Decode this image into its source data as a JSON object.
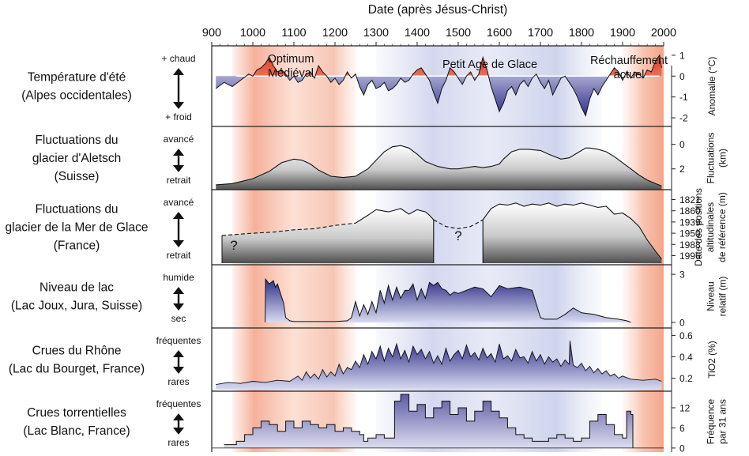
{
  "title": "Date (après Jésus-Christ)",
  "colors": {
    "warm": "#f4a98a",
    "cold": "#b7bde3",
    "blue_fill": "#3d3f8f",
    "red_fill": "#e0381e",
    "gray_dark": "#6b6b6b"
  },
  "chart_data": {
    "type": "area",
    "x_axis": {
      "label": "Date (après Jésus-Christ)",
      "range": [
        900,
        2000
      ],
      "ticks": [
        900,
        1000,
        1100,
        1200,
        1300,
        1400,
        1500,
        1600,
        1700,
        1800,
        1900,
        2000
      ]
    },
    "periods": [
      {
        "name": "Optimum Médiéval",
        "label_lines": [
          "Optimum",
          "Médiéval"
        ],
        "start": 950,
        "end": 1250,
        "kind": "warm"
      },
      {
        "name": "Petit Age de Glace",
        "label_lines": [
          "Petit Age de Glace"
        ],
        "start": 1300,
        "end": 1850,
        "kind": "cold"
      },
      {
        "name": "Réchauffement actuel",
        "label_lines": [
          "Réchauffement",
          "actuel"
        ],
        "start": 1900,
        "end": 2000,
        "kind": "warm"
      }
    ],
    "panels": [
      {
        "id": "temp",
        "title_lines": [
          "Température d'été",
          "(Alpes occidentales)"
        ],
        "top_label": "+ chaud",
        "bottom_label": "+ froid",
        "y_label_lines": [
          "Anomalie (°C)"
        ],
        "y_ticks": [
          {
            "v": 1,
            "label": "1"
          },
          {
            "v": 0,
            "label": "0"
          },
          {
            "v": -1,
            "label": "-1"
          },
          {
            "v": -2,
            "label": "-2"
          }
        ],
        "ylim": [
          -2.3,
          1.3
        ],
        "baseline": 0,
        "x": [
          910,
          930,
          950,
          970,
          990,
          1000,
          1010,
          1020,
          1030,
          1040,
          1050,
          1060,
          1070,
          1080,
          1090,
          1100,
          1110,
          1120,
          1130,
          1140,
          1150,
          1160,
          1170,
          1180,
          1190,
          1200,
          1210,
          1220,
          1230,
          1240,
          1250,
          1260,
          1270,
          1280,
          1290,
          1300,
          1310,
          1320,
          1330,
          1340,
          1350,
          1360,
          1370,
          1380,
          1390,
          1400,
          1410,
          1420,
          1430,
          1440,
          1450,
          1460,
          1470,
          1480,
          1490,
          1500,
          1510,
          1520,
          1530,
          1540,
          1550,
          1560,
          1570,
          1580,
          1590,
          1600,
          1610,
          1620,
          1630,
          1640,
          1650,
          1660,
          1670,
          1680,
          1690,
          1700,
          1710,
          1720,
          1730,
          1740,
          1750,
          1760,
          1770,
          1780,
          1790,
          1800,
          1810,
          1820,
          1830,
          1840,
          1850,
          1860,
          1870,
          1880,
          1890,
          1900,
          1910,
          1920,
          1930,
          1940,
          1950,
          1960,
          1970,
          1980,
          1990,
          1995
        ],
        "y": [
          -0.6,
          -0.3,
          -0.5,
          -0.2,
          0.1,
          0.0,
          0.3,
          0.4,
          0.6,
          0.9,
          0.5,
          0.2,
          0.3,
          0.1,
          -0.2,
          0.0,
          -0.3,
          -0.2,
          0.1,
          0.2,
          -0.1,
          0.5,
          0.2,
          0.0,
          -0.3,
          -0.1,
          -0.4,
          -0.2,
          0.2,
          -0.1,
          0.1,
          -0.5,
          -0.9,
          -0.4,
          -0.2,
          -0.6,
          -0.5,
          -0.3,
          -0.7,
          -0.6,
          -0.4,
          -0.1,
          -0.3,
          -0.2,
          0.1,
          0.3,
          0.4,
          0.1,
          -0.2,
          -0.8,
          -1.3,
          -0.6,
          -0.2,
          0.4,
          0.2,
          -0.1,
          -0.4,
          0.0,
          0.2,
          -0.2,
          0.1,
          0.9,
          0.3,
          -0.5,
          -1.1,
          -1.7,
          -1.3,
          -0.7,
          -0.5,
          -0.9,
          -0.4,
          -0.2,
          -0.5,
          -0.1,
          0.1,
          -0.3,
          -0.6,
          -0.2,
          -0.9,
          -0.5,
          -0.1,
          0.0,
          -0.3,
          -0.6,
          -1.0,
          -1.5,
          -1.9,
          -1.1,
          -0.6,
          -0.9,
          -0.5,
          -0.2,
          0.1,
          0.4,
          0.2,
          -0.2,
          0.2,
          -0.1,
          0.2,
          0.1,
          -0.1,
          0.3,
          0.2,
          0.7,
          1.0,
          0.4
        ]
      },
      {
        "id": "aletsch",
        "title_lines": [
          "Fluctuations du",
          "glacier d'Aletsch",
          "(Suisse)"
        ],
        "top_label": "avancé",
        "bottom_label": "retrait",
        "y_label_lines": [
          "Fluctuations",
          "(km)"
        ],
        "y_ticks": [
          {
            "v": 0,
            "label": "0"
          },
          {
            "v": 2,
            "label": "2"
          }
        ],
        "ylim": [
          3.5,
          -1.2
        ],
        "x": [
          910,
          950,
          1000,
          1040,
          1070,
          1100,
          1120,
          1140,
          1160,
          1190,
          1220,
          1250,
          1280,
          1300,
          1320,
          1340,
          1360,
          1380,
          1400,
          1420,
          1450,
          1480,
          1500,
          1520,
          1540,
          1560,
          1580,
          1600,
          1610,
          1630,
          1650,
          1670,
          1700,
          1720,
          1750,
          1770,
          1790,
          1810,
          1820,
          1840,
          1860,
          1880,
          1900,
          1920,
          1940,
          1960,
          1980,
          1995
        ],
        "y": [
          3.3,
          3.2,
          2.8,
          2.2,
          1.5,
          1.2,
          1.3,
          1.6,
          2.1,
          2.6,
          2.7,
          2.6,
          2.0,
          1.3,
          0.6,
          0.2,
          0.1,
          0.3,
          0.8,
          1.4,
          1.8,
          2.0,
          2.0,
          1.9,
          1.8,
          1.9,
          1.8,
          1.6,
          1.2,
          0.6,
          0.4,
          0.4,
          0.5,
          0.8,
          1.2,
          1.1,
          0.7,
          0.3,
          0.3,
          0.4,
          0.6,
          1.0,
          1.5,
          2.0,
          2.5,
          2.9,
          3.2,
          3.4
        ]
      },
      {
        "id": "merdeglace",
        "title_lines": [
          "Fluctuations du",
          "glacier de la Mer de Glace",
          "(France)"
        ],
        "top_label": "avancé",
        "bottom_label": "retrait",
        "y_label_lines": [
          "Date des positions",
          "altitudinales",
          "de référence (m)"
        ],
        "y_ticks": [
          {
            "v": 0,
            "label": "1821"
          },
          {
            "v": 1,
            "label": "1860"
          },
          {
            "v": 2,
            "label": "1939"
          },
          {
            "v": 3,
            "label": "1950"
          },
          {
            "v": 4,
            "label": "1988"
          },
          {
            "v": 5,
            "label": "1996"
          }
        ],
        "ylim": [
          5.6,
          -0.6
        ],
        "unknown_label": "?",
        "dashed_1": {
          "x": [
            925,
            1000,
            1050,
            1100,
            1150,
            1200,
            1250
          ],
          "y": [
            3.2,
            3.0,
            2.9,
            2.7,
            2.6,
            2.3,
            2.1
          ]
        },
        "segment_1": {
          "x": [
            1250,
            1280,
            1300,
            1330,
            1360,
            1380,
            1400,
            1420,
            1430,
            1440
          ],
          "y": [
            2.1,
            1.4,
            0.9,
            1.1,
            0.8,
            1.3,
            0.9,
            1.1,
            1.4,
            1.8
          ]
        },
        "dashed_2": {
          "x": [
            1440,
            1470,
            1500,
            1530,
            1560
          ],
          "y": [
            1.8,
            2.4,
            2.6,
            2.4,
            1.8
          ]
        },
        "segment_2": {
          "x": [
            1560,
            1580,
            1600,
            1620,
            1640,
            1660,
            1680,
            1700,
            1720,
            1740,
            1760,
            1780,
            1800,
            1820,
            1840,
            1860,
            1880,
            1900,
            1920,
            1940,
            1960,
            1980,
            1995
          ],
          "y": [
            1.8,
            0.8,
            0.4,
            0.5,
            0.3,
            0.6,
            0.4,
            0.5,
            0.3,
            0.6,
            0.4,
            0.5,
            0.3,
            0.5,
            0.7,
            0.6,
            1.3,
            1.2,
            1.7,
            2.4,
            3.6,
            4.6,
            5.3
          ]
        }
      },
      {
        "id": "lake",
        "title_lines": [
          "Niveau de lac",
          "(Lac Joux, Jura, Suisse)"
        ],
        "top_label": "humide",
        "bottom_label": "sec",
        "y_label_lines": [
          "Niveau",
          "relatif (m)"
        ],
        "y_ticks": [
          {
            "v": 3,
            "label": "3"
          },
          {
            "v": 0,
            "label": "0"
          }
        ],
        "ylim": [
          -0.2,
          3.4
        ],
        "x": [
          1030,
          1031,
          1040,
          1050,
          1055,
          1060,
          1070,
          1075,
          1080,
          1090,
          1100,
          1150,
          1200,
          1230,
          1240,
          1250,
          1260,
          1270,
          1280,
          1290,
          1300,
          1310,
          1320,
          1330,
          1340,
          1350,
          1360,
          1370,
          1380,
          1390,
          1400,
          1410,
          1420,
          1430,
          1440,
          1450,
          1460,
          1470,
          1480,
          1490,
          1500,
          1520,
          1540,
          1560,
          1580,
          1600,
          1620,
          1650,
          1680,
          1700,
          1710,
          1740,
          1760,
          1780,
          1800,
          1830,
          1860,
          1890,
          1910,
          1920
        ],
        "y": [
          0.0,
          2.7,
          2.4,
          2.6,
          2.2,
          2.4,
          1.6,
          1.2,
          0.3,
          0.1,
          0.05,
          0.05,
          0.05,
          0.1,
          0.3,
          1.3,
          0.4,
          1.1,
          0.5,
          1.3,
          0.6,
          2.0,
          1.2,
          2.3,
          1.4,
          2.2,
          1.5,
          2.0,
          2.0,
          2.4,
          1.4,
          2.1,
          1.5,
          2.5,
          2.3,
          2.5,
          2.1,
          2.0,
          1.7,
          1.9,
          1.8,
          2.0,
          2.2,
          2.1,
          1.6,
          2.3,
          2.1,
          2.2,
          2.0,
          0.3,
          0.2,
          0.2,
          0.5,
          0.9,
          0.6,
          0.5,
          0.3,
          0.2,
          0.1,
          0.0
        ]
      },
      {
        "id": "rhone",
        "title_lines": [
          "Crues du Rhône",
          "(Lac du Bourget, France)"
        ],
        "top_label": "fréquentes",
        "bottom_label": "rares",
        "y_label_lines": [
          "TiO2 (%)"
        ],
        "y_ticks": [
          {
            "v": 0.6,
            "label": "0.6"
          },
          {
            "v": 0.4,
            "label": "0.4"
          },
          {
            "v": 0.2,
            "label": "0.2"
          }
        ],
        "ylim": [
          0.1,
          0.64
        ],
        "x": [
          910,
          940,
          970,
          1000,
          1030,
          1060,
          1090,
          1110,
          1120,
          1130,
          1140,
          1150,
          1160,
          1170,
          1180,
          1190,
          1200,
          1210,
          1220,
          1230,
          1240,
          1250,
          1260,
          1270,
          1280,
          1290,
          1300,
          1310,
          1320,
          1330,
          1340,
          1350,
          1360,
          1370,
          1380,
          1390,
          1400,
          1410,
          1420,
          1430,
          1440,
          1450,
          1460,
          1470,
          1480,
          1490,
          1500,
          1510,
          1520,
          1530,
          1540,
          1550,
          1560,
          1570,
          1580,
          1590,
          1600,
          1610,
          1620,
          1630,
          1640,
          1650,
          1660,
          1670,
          1680,
          1690,
          1700,
          1710,
          1720,
          1730,
          1740,
          1750,
          1760,
          1770,
          1772,
          1780,
          1790,
          1800,
          1810,
          1820,
          1830,
          1840,
          1850,
          1860,
          1870,
          1880,
          1890,
          1900,
          1920,
          1950,
          1980,
          1995
        ],
        "y": [
          0.14,
          0.16,
          0.15,
          0.17,
          0.16,
          0.18,
          0.17,
          0.22,
          0.18,
          0.26,
          0.2,
          0.24,
          0.19,
          0.28,
          0.21,
          0.26,
          0.22,
          0.33,
          0.24,
          0.3,
          0.28,
          0.36,
          0.3,
          0.42,
          0.33,
          0.45,
          0.38,
          0.5,
          0.36,
          0.48,
          0.4,
          0.52,
          0.38,
          0.46,
          0.35,
          0.5,
          0.42,
          0.47,
          0.38,
          0.45,
          0.34,
          0.41,
          0.33,
          0.48,
          0.36,
          0.42,
          0.46,
          0.38,
          0.51,
          0.4,
          0.44,
          0.37,
          0.48,
          0.39,
          0.43,
          0.35,
          0.52,
          0.38,
          0.41,
          0.36,
          0.47,
          0.39,
          0.4,
          0.34,
          0.45,
          0.36,
          0.42,
          0.33,
          0.4,
          0.35,
          0.38,
          0.31,
          0.37,
          0.33,
          0.55,
          0.32,
          0.3,
          0.34,
          0.27,
          0.31,
          0.25,
          0.29,
          0.24,
          0.27,
          0.22,
          0.24,
          0.2,
          0.22,
          0.19,
          0.18,
          0.19,
          0.17
        ]
      },
      {
        "id": "torrents",
        "title_lines": [
          "Crues torrentielles",
          "(Lac Blanc, France)"
        ],
        "top_label": "fréquentes",
        "bottom_label": "rares",
        "y_label_lines": [
          "Fréquence",
          "par 31 ans"
        ],
        "y_ticks": [
          {
            "v": 12,
            "label": "12"
          },
          {
            "v": 6,
            "label": "6"
          },
          {
            "v": 0,
            "label": "0"
          }
        ],
        "ylim": [
          -0.5,
          16
        ],
        "step": true,
        "x": [
          930,
          960,
          980,
          1000,
          1020,
          1040,
          1060,
          1080,
          1100,
          1120,
          1140,
          1160,
          1180,
          1200,
          1220,
          1240,
          1260,
          1270,
          1280,
          1300,
          1320,
          1340,
          1345,
          1360,
          1380,
          1400,
          1420,
          1440,
          1460,
          1480,
          1500,
          1520,
          1540,
          1560,
          1580,
          1600,
          1620,
          1640,
          1660,
          1680,
          1700,
          1720,
          1740,
          1760,
          1780,
          1800,
          1820,
          1840,
          1860,
          1880,
          1900,
          1910,
          1920,
          1925
        ],
        "y": [
          1,
          2,
          4,
          6,
          8,
          7,
          5,
          8,
          6,
          8,
          7,
          6,
          7,
          5,
          6,
          5,
          4,
          2,
          3,
          4,
          3,
          3,
          14,
          16,
          11,
          13,
          9,
          12,
          14,
          10,
          12,
          8,
          11,
          14,
          11,
          9,
          6,
          4,
          3,
          2,
          2,
          3,
          4,
          3,
          2,
          3,
          8,
          10,
          7,
          4,
          3,
          11,
          10,
          0
        ]
      }
    ]
  }
}
